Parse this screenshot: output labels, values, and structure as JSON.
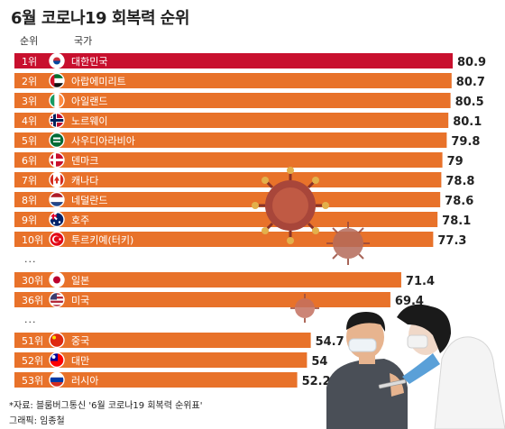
{
  "header": {
    "title": "6월 코로나19 회복력 순위",
    "col_rank": "순위",
    "col_country": "국가"
  },
  "ellipsis": "...",
  "footer": {
    "source": "*자료: 블룸버그통신 '6월 코로나19 회복력 순위표'",
    "credit": "그래픽: 임종철"
  },
  "colors": {
    "highlight": "#c8102e",
    "bar": "#e8722a",
    "rank_text": "#ffffff",
    "value_text": "#222222"
  },
  "chart_data": {
    "type": "bar",
    "orientation": "horizontal",
    "title": "6월 코로나19 회복력 순위",
    "xlim": [
      0,
      80.9
    ],
    "rows": [
      {
        "rank": "1위",
        "country": "대한민국",
        "value": 80.9,
        "highlight": true,
        "flag": "south-korea-flag-icon"
      },
      {
        "rank": "2위",
        "country": "아랍에미리트",
        "value": 80.7,
        "flag": "uae-flag-icon"
      },
      {
        "rank": "3위",
        "country": "아일랜드",
        "value": 80.5,
        "flag": "ireland-flag-icon"
      },
      {
        "rank": "4위",
        "country": "노르웨이",
        "value": 80.1,
        "flag": "norway-flag-icon"
      },
      {
        "rank": "5위",
        "country": "사우디아라비아",
        "value": 79.8,
        "flag": "saudi-arabia-flag-icon"
      },
      {
        "rank": "6위",
        "country": "덴마크",
        "value": 79,
        "flag": "denmark-flag-icon"
      },
      {
        "rank": "7위",
        "country": "캐나다",
        "value": 78.8,
        "flag": "canada-flag-icon"
      },
      {
        "rank": "8위",
        "country": "네덜란드",
        "value": 78.6,
        "flag": "netherlands-flag-icon"
      },
      {
        "rank": "9위",
        "country": "호주",
        "value": 78.1,
        "flag": "australia-flag-icon"
      },
      {
        "rank": "10위",
        "country": "투르키예(터키)",
        "value": 77.3,
        "flag": "turkey-flag-icon"
      },
      {
        "rank": "30위",
        "country": "일본",
        "value": 71.4,
        "flag": "japan-flag-icon"
      },
      {
        "rank": "36위",
        "country": "미국",
        "value": 69.4,
        "flag": "usa-flag-icon"
      },
      {
        "rank": "51위",
        "country": "중국",
        "value": 54.7,
        "flag": "china-flag-icon"
      },
      {
        "rank": "52위",
        "country": "대만",
        "value": 54,
        "flag": "taiwan-flag-icon"
      },
      {
        "rank": "53위",
        "country": "러시아",
        "value": 52.2,
        "flag": "russia-flag-icon"
      }
    ]
  }
}
